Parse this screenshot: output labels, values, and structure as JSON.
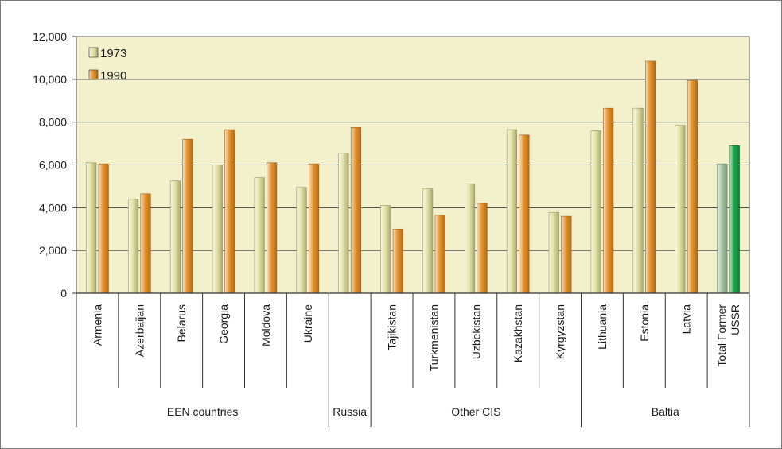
{
  "chart_data": {
    "type": "bar",
    "ylim": [
      0,
      12000
    ],
    "yticks": [
      "0",
      "2,000",
      "4,000",
      "6,000",
      "8,000",
      "10,000",
      "12,000"
    ],
    "ytick_values": [
      0,
      2000,
      4000,
      6000,
      8000,
      10000,
      12000
    ],
    "grid": true,
    "legend_placement": "top-left",
    "categories": [
      "Armenia",
      "Azerbaijan",
      "Belarus",
      "Georgia",
      "Moldova",
      "Ukraine",
      "",
      "Tajikistan",
      "Turkmenistan",
      "Uzbekistan",
      "Kazakhstan",
      "Kyrgyzstan",
      "Lithuania",
      "Estonia",
      "Latvia",
      "Total Former USSR"
    ],
    "groups": [
      {
        "label": "EEN countries",
        "start": 0,
        "end": 5
      },
      {
        "label": "Russia",
        "start": 6,
        "end": 6
      },
      {
        "label": "Other CIS",
        "start": 7,
        "end": 11
      },
      {
        "label": "Baltia",
        "start": 12,
        "end": 15
      }
    ],
    "series": [
      {
        "name": "1973",
        "color": "#e4e2a2",
        "values": [
          6100,
          4400,
          5250,
          6000,
          5400,
          4950,
          6550,
          4100,
          4880,
          5100,
          7650,
          3780,
          7600,
          8650,
          7850,
          6050
        ]
      },
      {
        "name": "1990",
        "color": "#e8932b",
        "values": [
          6050,
          4650,
          7200,
          7650,
          6100,
          6050,
          7750,
          3000,
          3650,
          4200,
          7400,
          3600,
          8650,
          10850,
          9950,
          6900
        ]
      }
    ],
    "special_colors": {
      "Total Former USSR": [
        "#a8c8a8",
        "#1aa84a"
      ]
    },
    "plot_background": "#f3f1cc"
  }
}
